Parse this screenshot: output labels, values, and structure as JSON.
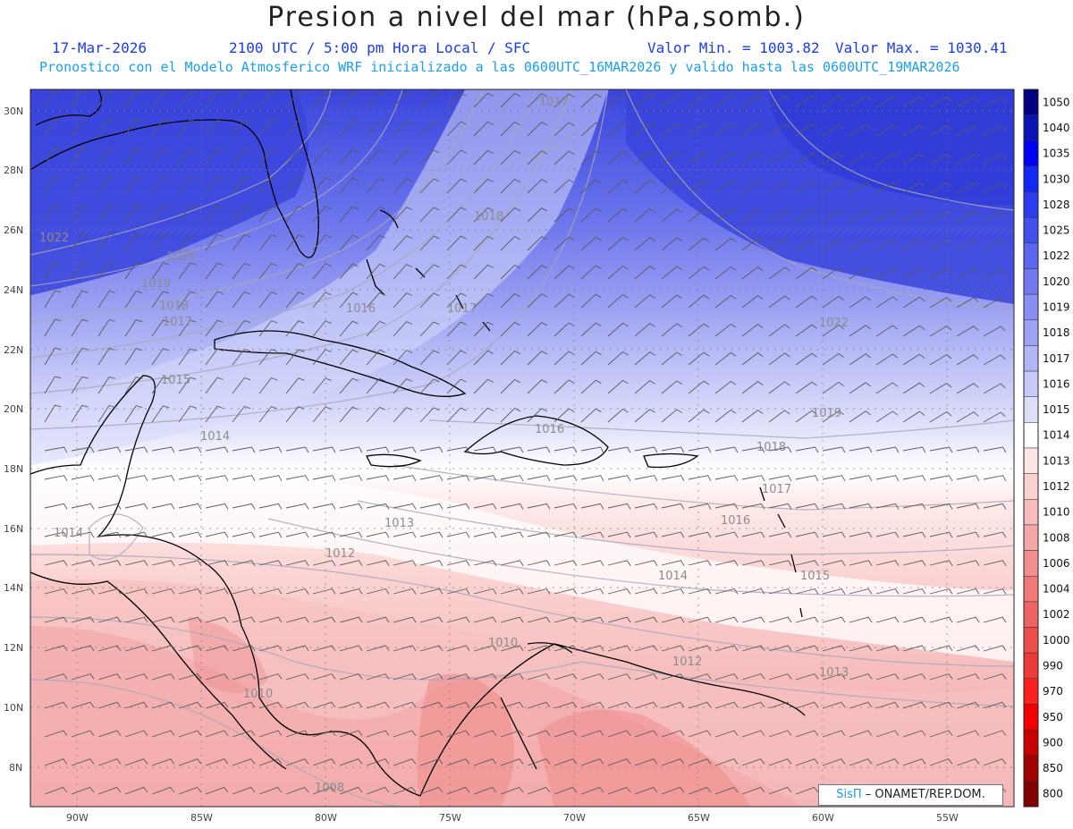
{
  "header": {
    "title": "Presion a nivel del mar (hPa,somb.)",
    "date": "17-Mar-2026",
    "time": "2100 UTC / 5:00 pm Hora Local / SFC",
    "value_min": "Valor Min. = 1003.82",
    "value_max": "Valor Max. = 1030.41",
    "forecast_note": "Pronostico con el Modelo Atmosferico WRF inicializado a las 0600UTC_16MAR2026 y valido hasta las  0600UTC_19MAR2026"
  },
  "map": {
    "lon_labels": [
      "90W",
      "85W",
      "80W",
      "75W",
      "70W",
      "65W",
      "60W",
      "55W"
    ],
    "lat_labels": [
      "30N",
      "28N",
      "26N",
      "24N",
      "22N",
      "20N",
      "18N",
      "16N",
      "14N",
      "12N",
      "10N",
      "8N"
    ],
    "contour_labels": [
      "1017",
      "1018",
      "1022",
      "1020",
      "1019",
      "1018",
      "1017",
      "1016",
      "1017",
      "1022",
      "1015",
      "1014",
      "1019",
      "1016",
      "1018",
      "1017",
      "1016",
      "1013",
      "1015",
      "1014",
      "1014",
      "1012",
      "1010",
      "1012",
      "1013",
      "1010",
      "1008"
    ],
    "colors": {
      "high": "#3c46dc",
      "mid": "#ffffff",
      "low": "#f3a8a8",
      "coast": "#000000",
      "contour": "#a0a0a0",
      "wind": "#555555"
    }
  },
  "colorbar": {
    "labels": [
      "1050",
      "1040",
      "1035",
      "1030",
      "1028",
      "1025",
      "1022",
      "1020",
      "1019",
      "1018",
      "1017",
      "1016",
      "1015",
      "1014",
      "1013",
      "1012",
      "1010",
      "1008",
      "1006",
      "1004",
      "1002",
      "1000",
      "990",
      "970",
      "950",
      "900",
      "850",
      "800"
    ],
    "colors": [
      "#000080",
      "#0a14b4",
      "#0000f0",
      "#1428f5",
      "#2e3cf0",
      "#4350ec",
      "#5c66ee",
      "#7279f0",
      "#888ef2",
      "#9da2f4",
      "#b3b6f6",
      "#c8cbf9",
      "#dddff9",
      "#ffffff",
      "#fde6e6",
      "#fbd2d2",
      "#f8bcbc",
      "#f5a6a6",
      "#f29090",
      "#f07a7a",
      "#ee6464",
      "#ec4e4e",
      "#ea3a3a",
      "#ff2020",
      "#f00000",
      "#c80000",
      "#a00000",
      "#800000"
    ]
  },
  "credit": {
    "brand": "SisΠ",
    "text": "– ONAMET/REP.DOM."
  }
}
